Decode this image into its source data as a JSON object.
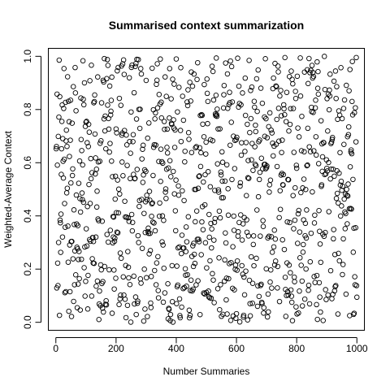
{
  "chart_data": {
    "type": "scatter",
    "title": "Summarised context summarization",
    "xlabel": "Number Summaries",
    "ylabel": "Weighted-Average Context",
    "xlim": [
      -25,
      1025
    ],
    "ylim": [
      -0.03,
      1.03
    ],
    "xticks": [
      0,
      200,
      400,
      600,
      800,
      1000
    ],
    "yticks": [
      0.0,
      0.2,
      0.4,
      0.6,
      0.8,
      1.0
    ],
    "xtick_labels": [
      "0",
      "200",
      "400",
      "600",
      "800",
      "1000"
    ],
    "ytick_labels": [
      "0.0",
      "0.2",
      "0.4",
      "0.6",
      "0.8",
      "1.0"
    ],
    "grid": false,
    "point_style": "open-circle",
    "point_color": "#000000",
    "n_points": 1000,
    "x_distribution": "x = 1..1000 (one point per summary count)",
    "y_distribution": "approximately uniform on [0, 1]"
  }
}
